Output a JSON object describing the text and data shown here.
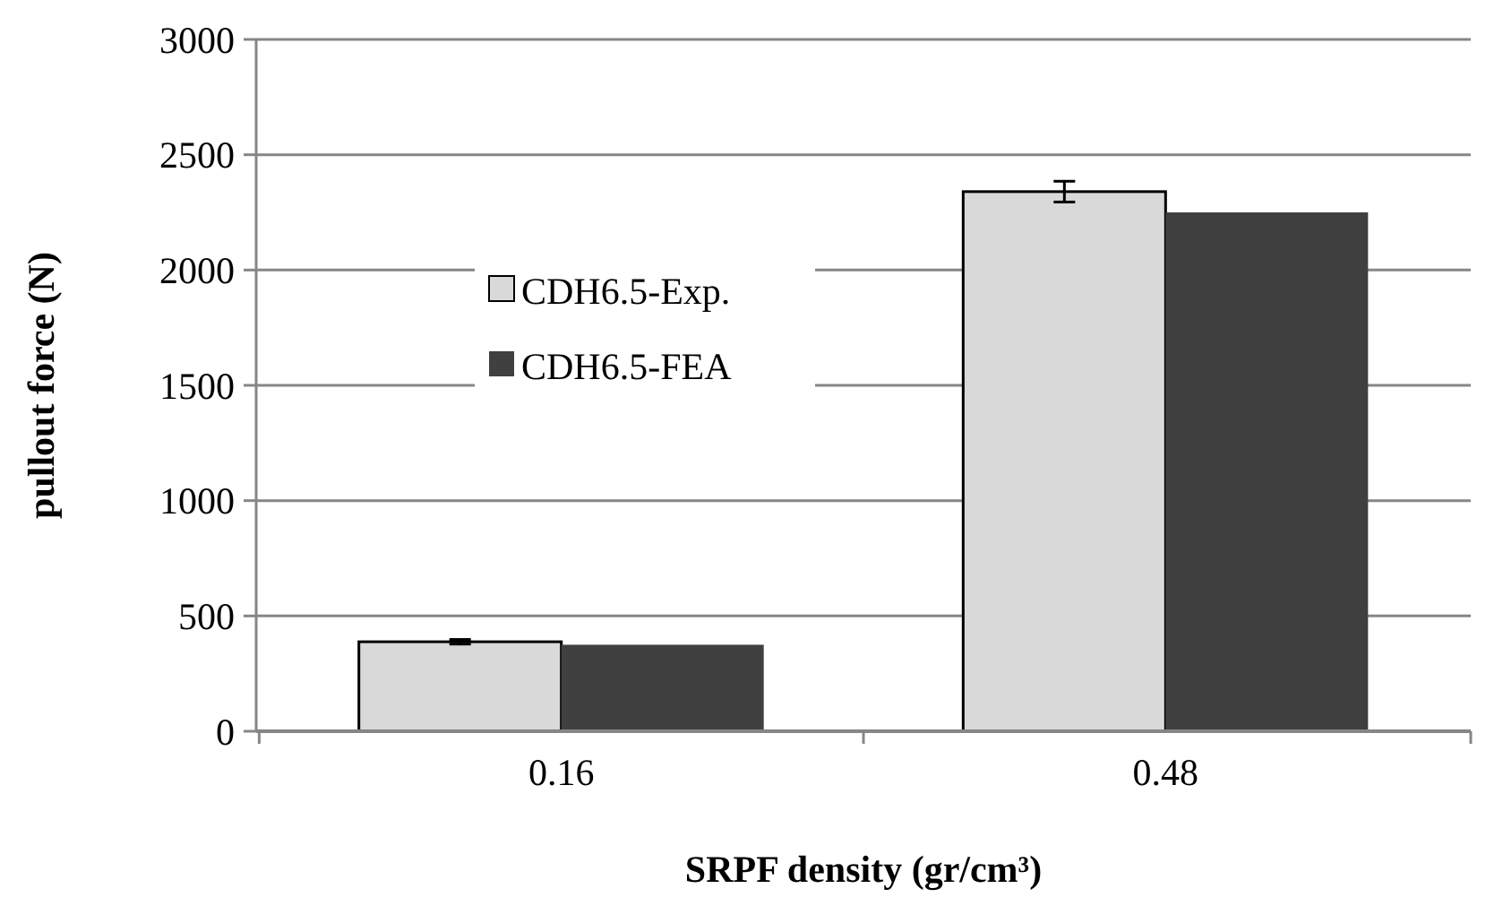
{
  "chart_data": {
    "type": "bar",
    "xlabel": "SRPF density (gr/cm³)",
    "ylabel": "pullout  force (N)",
    "categories": [
      "0.16",
      "0.48"
    ],
    "series": [
      {
        "name": "CDH6.5-Exp.",
        "color": "#d9d9d9",
        "values": [
          388,
          2340
        ],
        "errors": [
          10,
          45
        ]
      },
      {
        "name": "CDH6.5-FEA",
        "color": "#404040",
        "values": [
          375,
          2250
        ]
      }
    ],
    "ylim": [
      0,
      3000
    ],
    "yticks": [
      0,
      500,
      1000,
      1500,
      2000,
      2500,
      3000
    ],
    "grid": "y",
    "legend": "left"
  }
}
